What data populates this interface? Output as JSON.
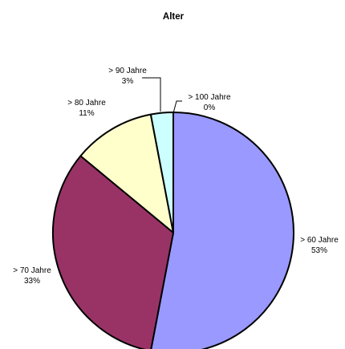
{
  "chart_data": {
    "type": "pie",
    "title": "Alter",
    "slices": [
      {
        "label": "> 60 Jahre",
        "percent_label": "53%",
        "value": 53,
        "color": "#9999ff"
      },
      {
        "label": "> 70 Jahre",
        "percent_label": "33%",
        "value": 33,
        "color": "#993366"
      },
      {
        "label": "> 80 Jahre",
        "percent_label": "11%",
        "value": 11,
        "color": "#ffffcc"
      },
      {
        "label": "> 90 Jahre",
        "percent_label": "3%",
        "value": 3,
        "color": "#ccffff"
      },
      {
        "label": "> 100 Jahre",
        "percent_label": "0%",
        "value": 0,
        "color": "#666699"
      }
    ]
  }
}
